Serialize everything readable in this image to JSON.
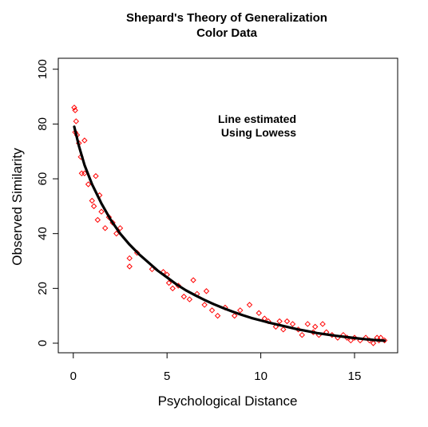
{
  "chart_data": {
    "type": "scatter",
    "title": "Shepard's Theory of Generalization",
    "subtitle": "Color Data",
    "xlabel": "Psychological Distance",
    "ylabel": "Observed Similarity",
    "annotation": [
      "Line estimated",
      "Using Lowess"
    ],
    "xlim": [
      -0.8,
      17.3
    ],
    "ylim": [
      -3.5,
      104
    ],
    "xticks": [
      0,
      5,
      10,
      15
    ],
    "yticks": [
      0,
      20,
      40,
      60,
      80,
      100
    ],
    "grid": false,
    "point_color": "#ff0000",
    "line_color": "#000000",
    "series": [
      {
        "kind": "points",
        "marker": "diamond-open",
        "x": [
          0.05,
          0.1,
          0.15,
          0.1,
          0.2,
          0.3,
          0.4,
          0.45,
          0.6,
          0.6,
          0.8,
          1.0,
          1.1,
          1.2,
          1.3,
          1.4,
          1.5,
          1.7,
          1.9,
          2.1,
          2.3,
          2.5,
          3.0,
          3.0,
          3.4,
          4.2,
          4.8,
          5.0,
          5.1,
          5.3,
          5.6,
          5.9,
          6.2,
          6.4,
          6.6,
          7.0,
          7.1,
          7.4,
          7.7,
          8.1,
          8.6,
          8.9,
          9.4,
          9.9,
          10.2,
          10.4,
          10.8,
          11.0,
          11.2,
          11.4,
          11.7,
          12.0,
          12.2,
          12.5,
          12.8,
          12.9,
          13.1,
          13.3,
          13.5,
          13.8,
          14.1,
          14.4,
          14.6,
          14.8,
          15.0,
          15.3,
          15.6,
          15.8,
          16.0,
          16.2,
          16.3,
          16.4,
          16.6
        ],
        "y": [
          86,
          85,
          81,
          77,
          76,
          73,
          68,
          62,
          62,
          74,
          58,
          52,
          50,
          61,
          45,
          54,
          48,
          42,
          46,
          44,
          40,
          42,
          28,
          31,
          33,
          27,
          26,
          25,
          22,
          20,
          21,
          17,
          16,
          23,
          18,
          14,
          19,
          12,
          10,
          13,
          10,
          12,
          14,
          11,
          9,
          8,
          6,
          8,
          5,
          8,
          7,
          5,
          3,
          7,
          4,
          6,
          3,
          7,
          4,
          3,
          2,
          3,
          2,
          1,
          2,
          1,
          2,
          1,
          0,
          2,
          1,
          2,
          1
        ]
      },
      {
        "kind": "line",
        "x": [
          0.05,
          0.3,
          0.6,
          1.0,
          1.5,
          2.0,
          2.5,
          3.0,
          3.5,
          4.0,
          4.5,
          5.0,
          5.5,
          6.0,
          6.5,
          7.0,
          7.5,
          8.0,
          8.5,
          9.0,
          9.5,
          10.0,
          10.5,
          11.0,
          11.5,
          12.0,
          12.5,
          13.0,
          13.5,
          14.0,
          14.5,
          15.0,
          15.5,
          16.0,
          16.6
        ],
        "y": [
          79,
          72,
          65,
          58,
          51,
          45,
          40,
          36,
          32.5,
          29.5,
          26.5,
          24,
          21.5,
          19.3,
          17.5,
          15.8,
          14.2,
          12.8,
          11.5,
          10.3,
          9.2,
          8.3,
          7.4,
          6.6,
          5.8,
          5.0,
          4.4,
          3.7,
          3.2,
          2.7,
          2.3,
          1.9,
          1.5,
          1.2,
          0.9
        ]
      }
    ]
  }
}
